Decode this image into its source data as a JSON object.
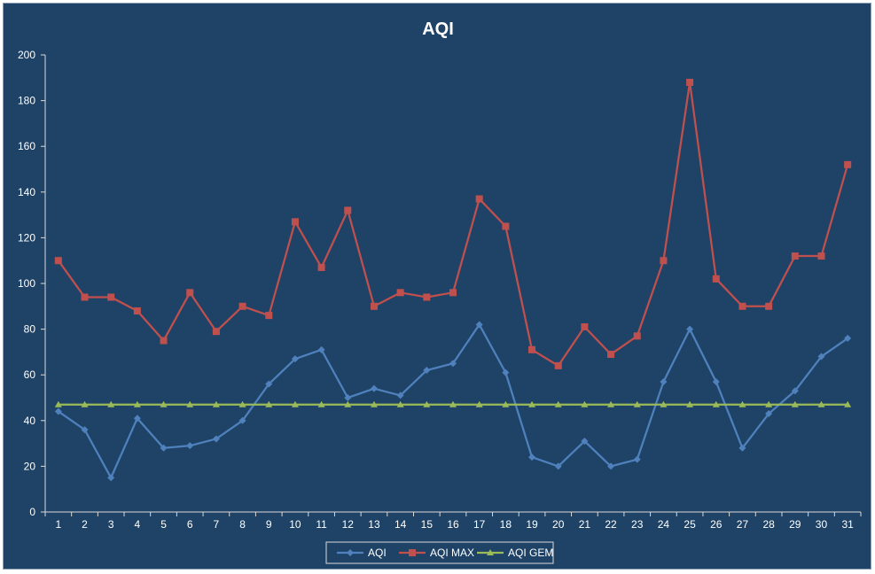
{
  "chart_data": {
    "type": "line",
    "title": "AQI",
    "xlabel": "",
    "ylabel": "",
    "ylim": [
      0,
      200
    ],
    "yticks": [
      0,
      20,
      40,
      60,
      80,
      100,
      120,
      140,
      160,
      180,
      200
    ],
    "grid": false,
    "legend_position": "bottom",
    "background_color": "#1f4367",
    "categories": [
      "1",
      "2",
      "3",
      "4",
      "5",
      "6",
      "7",
      "8",
      "9",
      "10",
      "11",
      "12",
      "13",
      "14",
      "15",
      "16",
      "17",
      "18",
      "19",
      "20",
      "21",
      "22",
      "23",
      "24",
      "25",
      "26",
      "27",
      "28",
      "29",
      "30",
      "31"
    ],
    "series": [
      {
        "name": "AQI",
        "color": "#4f81bd",
        "marker": "diamond",
        "values": [
          44,
          36,
          15,
          41,
          28,
          29,
          32,
          40,
          56,
          67,
          71,
          50,
          54,
          51,
          62,
          65,
          82,
          61,
          24,
          20,
          31,
          20,
          23,
          57,
          80,
          57,
          28,
          43,
          53,
          68,
          76
        ]
      },
      {
        "name": "AQI MAX",
        "color": "#c0504d",
        "marker": "square",
        "values": [
          110,
          94,
          94,
          88,
          75,
          96,
          79,
          90,
          86,
          127,
          107,
          132,
          90,
          96,
          94,
          96,
          137,
          125,
          71,
          64,
          81,
          69,
          77,
          110,
          188,
          102,
          90,
          90,
          112,
          112,
          152
        ]
      },
      {
        "name": "AQI GEM",
        "color": "#9bbb59",
        "marker": "triangle",
        "values": [
          47,
          47,
          47,
          47,
          47,
          47,
          47,
          47,
          47,
          47,
          47,
          47,
          47,
          47,
          47,
          47,
          47,
          47,
          47,
          47,
          47,
          47,
          47,
          47,
          47,
          47,
          47,
          47,
          47,
          47,
          47
        ]
      }
    ]
  }
}
